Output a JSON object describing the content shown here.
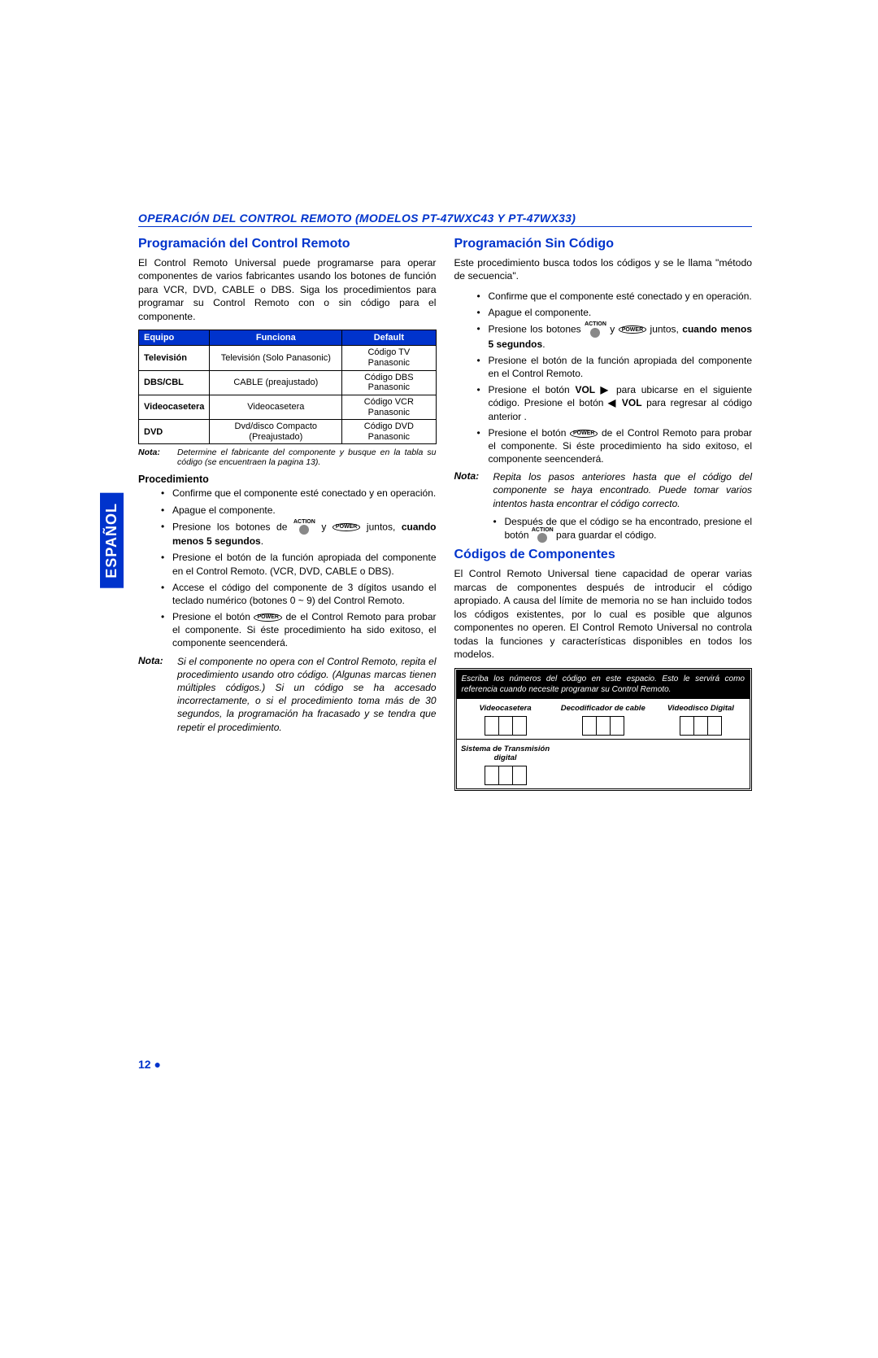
{
  "section_header": "OPERACIÓN DEL CONTROL REMOTO (MODELOS PT-47WXC43 Y PT-47WX33)",
  "sidebar_label": "ESPAÑOL",
  "page_number": "12",
  "colors": {
    "accent": "#0033cc",
    "text": "#000000",
    "bg": "#ffffff",
    "table_header_bg": "#0033cc",
    "table_header_fg": "#ffffff",
    "code_hdr_bg": "#000000",
    "code_hdr_fg": "#ffffff"
  },
  "left": {
    "h2": "Programación del Control Remoto",
    "intro": "El Control Remoto Universal puede programarse para operar componentes de varios fabricantes usando los botones de función para VCR, DVD, CABLE o DBS. Siga los procedimientos para programar su Control Remoto con o sin código para el componente.",
    "table": {
      "columns": [
        "Equipo",
        "Funciona",
        "Default"
      ],
      "rows": [
        [
          "Televisión",
          "Televisión (Solo Panasonic)",
          "Código TV Panasonic"
        ],
        [
          "DBS/CBL",
          "CABLE (preajustado)",
          "Código DBS Panasonic"
        ],
        [
          "Videocasetera",
          "Videocasetera",
          "Código VCR Panasonic"
        ],
        [
          "DVD",
          "Dvd/disco Compacto (Preajustado)",
          "Código DVD Panasonic"
        ]
      ]
    },
    "nota1_label": "Nota:",
    "nota1_text": "Determine el fabricante del componente y busque en la tabla su código (se encuentraen la pagina 13).",
    "proc_head": "Procedimiento",
    "proc": [
      "Confirme que el componente esté conectado y en operación.",
      "Apague el componente.",
      "Presione los botones de __ACTION__  y  __POWER__  juntos, __BOLD__cuando menos 5 segundos__ENDBOLD__.",
      "Presione el botón de la función apropiada del componente en el Control Remoto. (VCR, DVD, CABLE o DBS).",
      "Accese el código del componente de 3 dígitos usando el teclado numérico (botones 0 ~ 9) del Control Remoto.",
      "Presione el botón __POWER__ de el Control Remoto para probar el  componente. Si éste procedimiento ha sido exitoso, el componente seencenderá."
    ],
    "nota2_label": "Nota:",
    "nota2_text": "Si el componente no opera con el Control Remoto, repita el procedimiento usando otro código. (Algunas marcas tienen múltiples códigos.) Si un código se ha accesado incorrectamente, o si el procedimiento toma más de 30 segundos, la programación ha fracasado y se tendra que repetir el procedimiento."
  },
  "right": {
    "h2a": "Programación Sin Código",
    "intro_a": "Este procedimiento busca todos los códigos y se le llama \"método de secuencia\".",
    "proc_a": [
      "Confirme que el componente esté conectado y en operación.",
      "Apague el componente.",
      "Presione los botones __ACTION__  y  __POWER__  juntos, __BOLD__cuando menos 5 segundos__ENDBOLD__.",
      "Presione el botón de la función apropiada del componente en el Control Remoto.",
      "Presione el botón __BOLD__VOL ▶__ENDBOLD__ para ubicarse en el siguiente código. Presione el botón __BOLD__◀ VOL__ENDBOLD__ para regresar al código anterior .",
      "Presione el botón __POWER__ de el Control Remoto para probar el componente. Si éste procedimiento ha sido exitoso, el componente seencenderá."
    ],
    "nota_a_label": "Nota:",
    "nota_a_text": "Repita los pasos anteriores hasta que el código del componente se haya encontrado. Puede tomar varios intentos hasta encontrar el código correcto.",
    "sub_bullet": "Después de que el código se ha encontrado, presione el botón __ACTION__ para guardar el código.",
    "h2b": "Códigos de Componentes",
    "intro_b": "El Control Remoto Universal tiene capacidad de operar varias marcas de componentes después de introducir el código apropiado. A causa del límite de memoria no se han incluido todos los códigos existentes, por lo cual es posible que algunos componentes no operen. El Control Remoto Universal no controla todas la funciones y características disponibles en todos los modelos.",
    "code_box_header": "Escriba los números del código en este espacio. Esto le servirá como referencia cuando necesite programar su Control Remoto.",
    "code_cells": [
      "Videocasetera",
      "Decodificador de cable",
      "Videodisco Digital",
      "Sistema de Transmisión digital",
      "",
      ""
    ]
  },
  "labels": {
    "action": "ACTION",
    "power": "POWER"
  }
}
